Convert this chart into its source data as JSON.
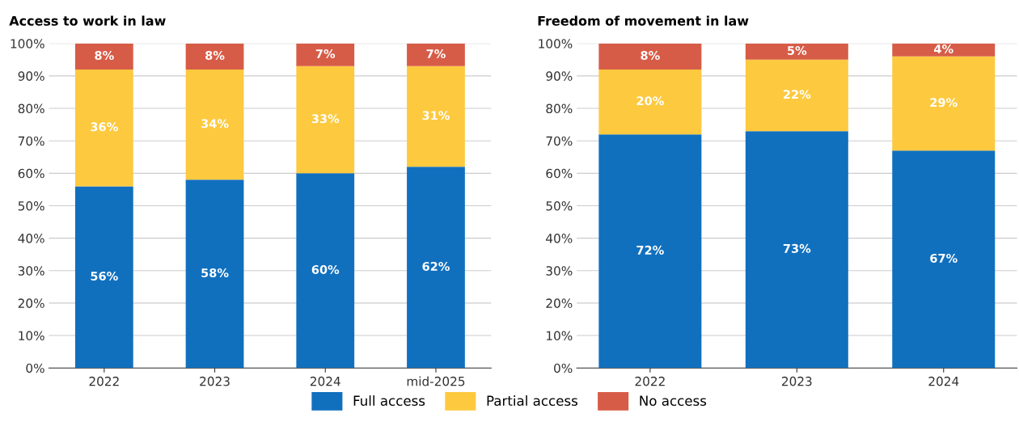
{
  "chart_data": [
    {
      "type": "bar",
      "title": "Access to work in law",
      "categories": [
        "2022",
        "2023",
        "2024",
        "mid-2025"
      ],
      "stacked": true,
      "grid": "y",
      "legend": "bottom",
      "ylim": [
        0,
        100
      ],
      "yticks": [
        {
          "value": 0,
          "label": "0%"
        },
        {
          "value": 10,
          "label": "10%"
        },
        {
          "value": 20,
          "label": "20%"
        },
        {
          "value": 30,
          "label": "30%"
        },
        {
          "value": 40,
          "label": "40%"
        },
        {
          "value": 50,
          "label": "50%"
        },
        {
          "value": 60,
          "label": "60%"
        },
        {
          "value": 70,
          "label": "70%"
        },
        {
          "value": 80,
          "label": "80%"
        },
        {
          "value": 90,
          "label": "90%"
        },
        {
          "value": 100,
          "label": "100%"
        }
      ],
      "series": [
        {
          "name": "Full access",
          "color": "#1170be",
          "values": [
            56,
            58,
            60,
            62
          ],
          "value_labels": [
            "56%",
            "58%",
            "60%",
            "62%"
          ]
        },
        {
          "name": "Partial access",
          "color": "#fdc93f",
          "values": [
            36,
            34,
            33,
            31
          ],
          "value_labels": [
            "36%",
            "34%",
            "33%",
            "31%"
          ]
        },
        {
          "name": "No access",
          "color": "#d75c47",
          "values": [
            8,
            8,
            7,
            7
          ],
          "value_labels": [
            "8%",
            "8%",
            "7%",
            "7%"
          ]
        }
      ]
    },
    {
      "type": "bar",
      "title": "Freedom of movement in law",
      "categories": [
        "2022",
        "2023",
        "2024"
      ],
      "stacked": true,
      "grid": "y",
      "ylim": [
        0,
        100
      ],
      "yticks": [
        {
          "value": 0,
          "label": "0%"
        },
        {
          "value": 10,
          "label": "10%"
        },
        {
          "value": 20,
          "label": "20%"
        },
        {
          "value": 30,
          "label": "30%"
        },
        {
          "value": 40,
          "label": "40%"
        },
        {
          "value": 50,
          "label": "50%"
        },
        {
          "value": 60,
          "label": "60%"
        },
        {
          "value": 70,
          "label": "70%"
        },
        {
          "value": 80,
          "label": "80%"
        },
        {
          "value": 90,
          "label": "90%"
        },
        {
          "value": 100,
          "label": "100%"
        }
      ],
      "series": [
        {
          "color": "#1170be",
          "values": [
            72,
            73,
            67
          ],
          "value_labels": [
            "72%",
            "73%",
            "67%"
          ]
        },
        {
          "color": "#fdc93f",
          "values": [
            20,
            22,
            29
          ],
          "value_labels": [
            "20%",
            "22%",
            "29%"
          ]
        },
        {
          "color": "#d75c47",
          "values": [
            8,
            5,
            4
          ],
          "value_labels": [
            "8%",
            "5%",
            "4%"
          ]
        }
      ]
    }
  ]
}
